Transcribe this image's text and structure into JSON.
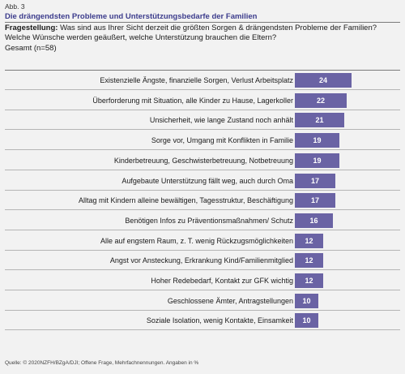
{
  "figure": {
    "label": "Abb. 3",
    "title": "Die drängendsten Probleme und Unterstützungsbedarfe der Familien",
    "question_label": "Fragestellung:",
    "question_text": "Was sind aus Ihrer Sicht derzeit die größten Sorgen & drängendsten Probleme der Familien? Welche Wünsche werden geäußert, welche Unterstützung brauchen die Eltern?",
    "total": "Gesamt (n=58)",
    "source": "Quelle: © 2020NZFH/BZgA/DJI; Offene Frage, Mehrfachnennungen. Angaben in %"
  },
  "chart_data": {
    "type": "bar",
    "orientation": "horizontal",
    "title": "Die drängendsten Probleme und Unterstützungsbedarfe der Familien",
    "categories": [
      "Existenzielle Ängste, finanzielle Sorgen, Verlust Arbeitsplatz",
      "Überforderung mit Situation, alle Kinder zu Hause, Lagerkoller",
      "Unsicherheit, wie lange Zustand noch anhält",
      "Sorge vor, Umgang mit Konflikten in Familie",
      "Kinderbetreuung, Geschwisterbetreuung, Notbetreuung",
      "Aufgebaute Unterstützung fällt weg, auch durch Oma",
      "Alltag mit Kindern alleine bewältigen, Tagesstruktur, Beschäftigung",
      "Benötigen Infos zu Präventionsmaßnahmen/ Schutz",
      "Alle auf engstem Raum, z. T. wenig Rückzugsmöglichkeiten",
      "Angst vor Ansteckung, Erkrankung Kind/Familienmitglied",
      "Hoher Redebedarf, Kontakt zur GFK wichtig",
      "Geschlossene Ämter, Antragstellungen",
      "Soziale Isolation, wenig Kontakte, Einsamkeit"
    ],
    "values": [
      24,
      22,
      21,
      19,
      19,
      17,
      17,
      16,
      12,
      12,
      12,
      10,
      10
    ],
    "bar_color": "#6a63a4",
    "value_label_color": "#ffffff",
    "grid": false,
    "legend": "none"
  }
}
